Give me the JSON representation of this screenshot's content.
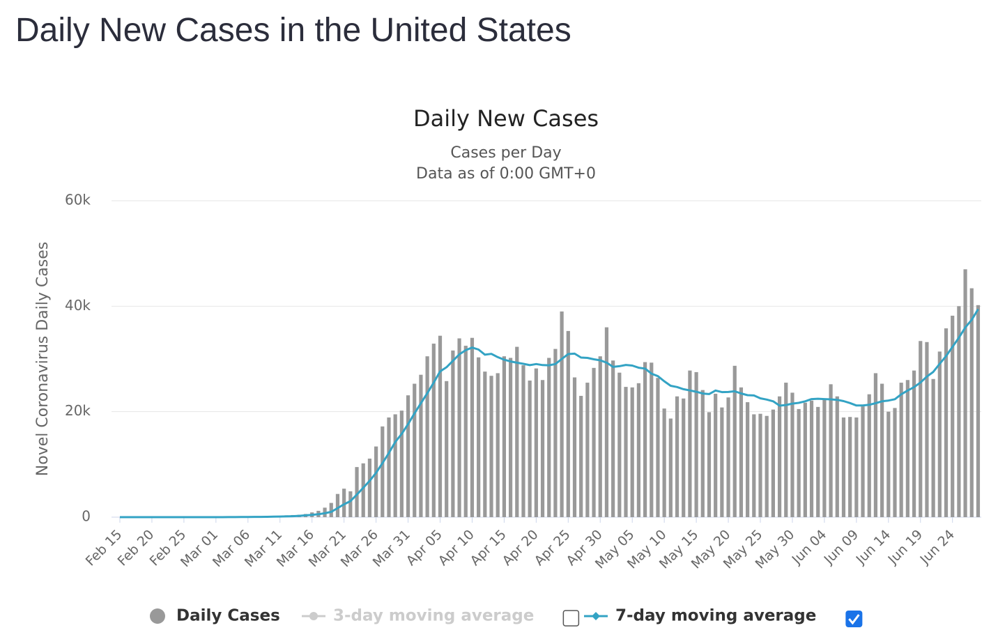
{
  "page_title": "Daily New Cases in the United States",
  "chart_data": {
    "type": "bar",
    "title": "Daily New Cases",
    "subtitle": [
      "Cases per Day",
      "Data as of 0:00 GMT+0"
    ],
    "y_label": "Novel Coronavirus Daily Cases",
    "ylim": [
      0,
      60000
    ],
    "yticks": [
      0,
      {
        "value": 20000,
        "label": "20k"
      },
      {
        "value": 40000,
        "label": "40k"
      },
      {
        "value": 60000,
        "label": "60k"
      }
    ],
    "grid": true,
    "categories": [
      "Feb 15",
      null,
      null,
      null,
      null,
      "Feb 20",
      null,
      null,
      null,
      null,
      "Feb 25",
      null,
      null,
      null,
      null,
      "Mar 01",
      null,
      null,
      null,
      null,
      "Mar 06",
      null,
      null,
      null,
      null,
      "Mar 11",
      null,
      null,
      null,
      null,
      "Mar 16",
      null,
      null,
      null,
      null,
      "Mar 21",
      null,
      null,
      null,
      null,
      "Mar 26",
      null,
      null,
      null,
      null,
      "Mar 31",
      null,
      null,
      null,
      null,
      "Apr 05",
      null,
      null,
      null,
      null,
      "Apr 10",
      null,
      null,
      null,
      null,
      "Apr 15",
      null,
      null,
      null,
      null,
      "Apr 20",
      null,
      null,
      null,
      null,
      "Apr 25",
      null,
      null,
      null,
      null,
      "Apr 30",
      null,
      null,
      null,
      null,
      "May 05",
      null,
      null,
      null,
      null,
      "May 10",
      null,
      null,
      null,
      null,
      "May 15",
      null,
      null,
      null,
      null,
      "May 20",
      null,
      null,
      null,
      null,
      "May 25",
      null,
      null,
      null,
      null,
      "May 30",
      null,
      null,
      null,
      null,
      "Jun 04",
      null,
      null,
      null,
      null,
      "Jun 09",
      null,
      null,
      null,
      null,
      "Jun 14",
      null,
      null,
      null,
      null,
      "Jun 19",
      null,
      null,
      null,
      null,
      "Jun 24",
      null,
      null,
      null,
      null
    ],
    "series": [
      {
        "name": "Daily Cases",
        "type": "bar",
        "color": "#999999",
        "values": [
          0,
          0,
          0,
          0,
          0,
          0,
          2,
          0,
          0,
          18,
          0,
          6,
          1,
          4,
          5,
          7,
          23,
          19,
          33,
          77,
          53,
          166,
          116,
          75,
          188,
          250,
          350,
          400,
          450,
          600,
          900,
          1200,
          1800,
          2700,
          4400,
          5400,
          4900,
          9500,
          10200,
          11100,
          13400,
          17200,
          18900,
          19500,
          20200,
          23100,
          25300,
          27000,
          30500,
          32900,
          34400,
          25800,
          31600,
          33900,
          32500,
          34000,
          30300,
          27600,
          26800,
          27300,
          30500,
          30200,
          32300,
          28800,
          25900,
          28200,
          26000,
          30200,
          31900,
          39000,
          35300,
          26500,
          23000,
          25500,
          28300,
          30500,
          36000,
          29700,
          27400,
          24700,
          24600,
          25400,
          29400,
          29300,
          26400,
          20600,
          18700,
          22900,
          22500,
          27800,
          27500,
          24100,
          19900,
          23400,
          20800,
          22700,
          28700,
          24600,
          21800,
          19500,
          19600,
          19200,
          20400,
          22900,
          25500,
          23600,
          20500,
          21700,
          22100,
          20900,
          22400,
          25200,
          22900,
          18900,
          19000,
          18900,
          21000,
          23300,
          27300,
          25300,
          20000,
          20700,
          25500,
          26000,
          27800,
          33400,
          33200,
          26200,
          31400,
          35800,
          38200,
          40000,
          47000,
          43400,
          40200
        ]
      },
      {
        "name": "3-day moving average",
        "type": "line",
        "color": "#cccccc",
        "visible": false,
        "checked": false
      },
      {
        "name": "7-day moving average",
        "type": "line",
        "color": "#33a3c4",
        "checked": true,
        "values": [
          0,
          0,
          0,
          0,
          0,
          0,
          0,
          0,
          0,
          3,
          3,
          4,
          4,
          4,
          5,
          5,
          6,
          9,
          10,
          21,
          25,
          49,
          59,
          62,
          88,
          117,
          150,
          190,
          250,
          340,
          440,
          560,
          740,
          1010,
          1720,
          2430,
          3040,
          4270,
          5560,
          6890,
          8410,
          10240,
          12170,
          14260,
          15790,
          17630,
          19660,
          21600,
          23500,
          25500,
          27630,
          28430,
          29640,
          30870,
          31660,
          32160,
          31790,
          30810,
          30960,
          30340,
          29860,
          29530,
          29290,
          29070,
          28830,
          29030,
          28840,
          28800,
          29040,
          30000,
          30930,
          31010,
          30270,
          30200,
          29930,
          29730,
          29300,
          28500,
          28630,
          28870,
          28740,
          28330,
          28170,
          27210,
          26740,
          25770,
          24910,
          24670,
          24260,
          24030,
          23770,
          23440,
          23340,
          24010,
          23710,
          23740,
          23870,
          23460,
          23130,
          23070,
          22530,
          22300,
          21970,
          21140,
          21270,
          21530,
          21670,
          21970,
          22390,
          22460,
          22390,
          22340,
          22240,
          22010,
          21630,
          21170,
          21190,
          21310,
          21610,
          21960,
          22110,
          22360,
          23300,
          24010,
          24660,
          25530,
          26660,
          27540,
          29070,
          30540,
          32290,
          34030,
          35970,
          37430,
          39430
        ]
      }
    ]
  }
}
